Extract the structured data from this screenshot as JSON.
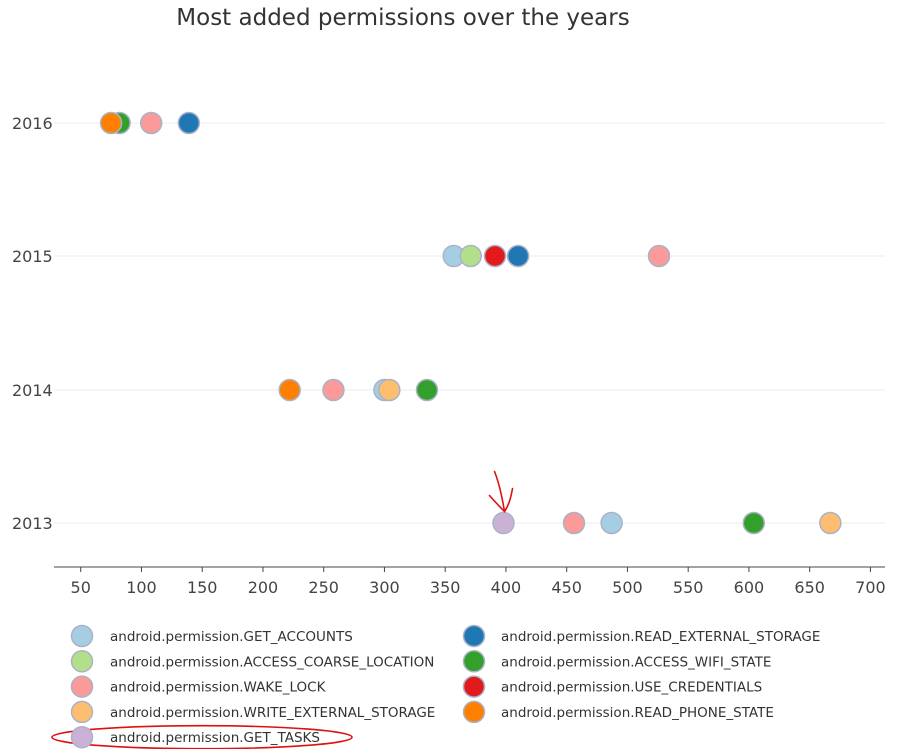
{
  "chart_data": {
    "type": "scatter",
    "title": "Most added permissions over the years",
    "xlabel": "",
    "ylabel": "",
    "xlim": [
      28,
      712
    ],
    "x_ticks": [
      50,
      100,
      150,
      200,
      250,
      300,
      350,
      400,
      450,
      500,
      550,
      600,
      650,
      700
    ],
    "y_categories": [
      "2013",
      "2014",
      "2015",
      "2016"
    ],
    "grid": {
      "x": false,
      "y": true
    },
    "legend_position": "bottom",
    "series": [
      {
        "name": "android.permission.GET_ACCOUNTS",
        "color": "#a6cee3",
        "points": [
          {
            "x": 357,
            "y": "2015"
          },
          {
            "x": 300,
            "y": "2014"
          },
          {
            "x": 487,
            "y": "2013"
          }
        ]
      },
      {
        "name": "android.permission.ACCESS_COARSE_LOCATION",
        "color": "#b2df8a",
        "points": [
          {
            "x": 371,
            "y": "2015"
          }
        ]
      },
      {
        "name": "android.permission.WAKE_LOCK",
        "color": "#fb9a99",
        "points": [
          {
            "x": 108,
            "y": "2016"
          },
          {
            "x": 526,
            "y": "2015"
          },
          {
            "x": 258,
            "y": "2014"
          },
          {
            "x": 456,
            "y": "2013"
          }
        ]
      },
      {
        "name": "android.permission.WRITE_EXTERNAL_STORAGE",
        "color": "#fdbf6f",
        "points": [
          {
            "x": 304,
            "y": "2014"
          },
          {
            "x": 667,
            "y": "2013"
          }
        ]
      },
      {
        "name": "android.permission.GET_TASKS",
        "color": "#cab2d6",
        "points": [
          {
            "x": 398,
            "y": "2013"
          }
        ]
      },
      {
        "name": "android.permission.READ_EXTERNAL_STORAGE",
        "color": "#1f78b4",
        "points": [
          {
            "x": 139,
            "y": "2016"
          },
          {
            "x": 410,
            "y": "2015"
          }
        ]
      },
      {
        "name": "android.permission.ACCESS_WIFI_STATE",
        "color": "#33a02c",
        "points": [
          {
            "x": 82,
            "y": "2016"
          },
          {
            "x": 335,
            "y": "2014"
          },
          {
            "x": 604,
            "y": "2013"
          }
        ]
      },
      {
        "name": "android.permission.USE_CREDENTIALS",
        "color": "#e31a1c",
        "points": [
          {
            "x": 391,
            "y": "2015"
          }
        ]
      },
      {
        "name": "android.permission.READ_PHONE_STATE",
        "color": "#ff7f00",
        "points": [
          {
            "x": 75,
            "y": "2016"
          },
          {
            "x": 222,
            "y": "2014"
          }
        ]
      }
    ],
    "annotations": [
      {
        "type": "arrow",
        "color": "#dd1111",
        "points_to": {
          "x": 398,
          "y": "2013"
        }
      },
      {
        "type": "ellipse",
        "color": "#dd1111",
        "around_legend_entry": "android.permission.GET_TASKS"
      }
    ]
  }
}
